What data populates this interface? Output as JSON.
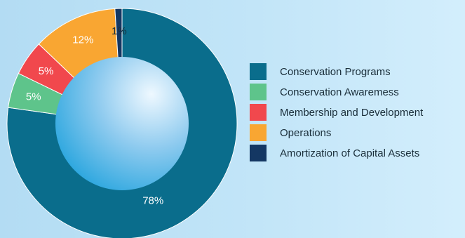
{
  "chart_data": {
    "type": "pie",
    "donut": true,
    "categories": [
      "Conservation Programs",
      "Conservation Awaremess",
      "Membership and Development",
      "Operations",
      "Amortization of Capital Assets"
    ],
    "values": [
      78,
      5,
      5,
      12,
      1
    ],
    "value_labels": [
      "78%",
      "5%",
      "5%",
      "12%",
      "1%"
    ],
    "colors": [
      "#0a6d8c",
      "#5ec48b",
      "#f1484d",
      "#f9a632",
      "#143763"
    ],
    "legend_position": "right"
  }
}
